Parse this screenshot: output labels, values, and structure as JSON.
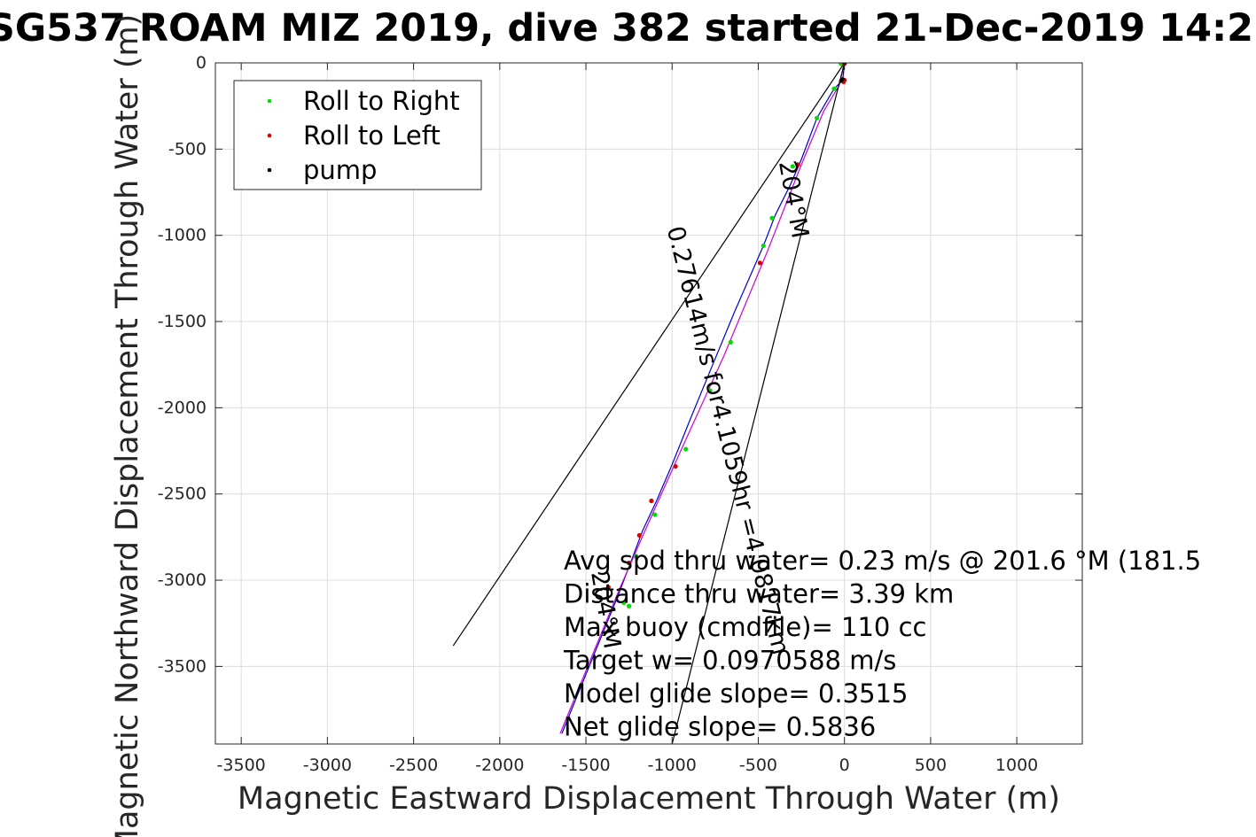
{
  "chart_data": {
    "type": "line",
    "title": "SG537 ROAM MIZ 2019, dive 382 started 21-Dec-2019 14:2",
    "xlabel": "Magnetic Eastward Displacement Through Water (m)",
    "ylabel": "Magnetic Northward Displacement Through Water (m)",
    "xlim": [
      -3650,
      1380
    ],
    "ylim": [
      -3950,
      0
    ],
    "xticks": [
      -3500,
      -3000,
      -2500,
      -2000,
      -1500,
      -1000,
      -500,
      0,
      500,
      1000
    ],
    "yticks": [
      0,
      -500,
      -1000,
      -1500,
      -2000,
      -2500,
      -3000,
      -3500
    ],
    "grid": true,
    "legend_position": "top-left",
    "legend": [
      {
        "label": "Roll to Right",
        "color": "#00dd00"
      },
      {
        "label": "Roll to Left",
        "color": "#dd0000"
      },
      {
        "label": "pump",
        "color": "#000000"
      }
    ],
    "series": [
      {
        "kind": "track-blue",
        "color": "#0000cc",
        "points": [
          [
            0,
            0
          ],
          [
            -10,
            -100
          ],
          [
            -60,
            -150
          ],
          [
            -90,
            -200
          ],
          [
            -160,
            -320
          ],
          [
            -250,
            -560
          ],
          [
            -320,
            -720
          ],
          [
            -400,
            -880
          ],
          [
            -470,
            -1060
          ],
          [
            -540,
            -1220
          ],
          [
            -640,
            -1450
          ],
          [
            -760,
            -1740
          ],
          [
            -900,
            -2080
          ],
          [
            -1000,
            -2330
          ],
          [
            -1090,
            -2540
          ],
          [
            -1170,
            -2710
          ],
          [
            -1230,
            -2870
          ],
          [
            -1280,
            -3000
          ],
          [
            -1310,
            -3080
          ],
          [
            -1640,
            -3890
          ]
        ]
      },
      {
        "kind": "track-magenta",
        "color": "#cc00cc",
        "points": [
          [
            0,
            0
          ],
          [
            -30,
            -130
          ],
          [
            -120,
            -280
          ],
          [
            -250,
            -590
          ],
          [
            -450,
            -1100
          ],
          [
            -700,
            -1700
          ],
          [
            -950,
            -2250
          ],
          [
            -1160,
            -2720
          ],
          [
            -1300,
            -3040
          ],
          [
            -1650,
            -3890
          ]
        ]
      },
      {
        "kind": "current-lines",
        "color": "#000000",
        "segments": [
          [
            [
              0,
              0
            ],
            [
              -2270,
              -3380
            ]
          ],
          [
            [
              0,
              0
            ],
            [
              -1000,
              -3950
            ]
          ]
        ]
      },
      {
        "name": "Roll to Right",
        "color": "#00dd00",
        "points": [
          [
            -20,
            -5
          ],
          [
            -60,
            -150
          ],
          [
            -160,
            -320
          ],
          [
            -300,
            -600
          ],
          [
            -420,
            -900
          ],
          [
            -470,
            -1060
          ],
          [
            -660,
            -1620
          ],
          [
            -780,
            -1900
          ],
          [
            -920,
            -2240
          ],
          [
            -1100,
            -2620
          ],
          [
            -1210,
            -2860
          ],
          [
            -1280,
            -3130
          ],
          [
            -1250,
            -3150
          ]
        ]
      },
      {
        "name": "Roll to Left",
        "color": "#dd0000",
        "points": [
          [
            0,
            -5
          ],
          [
            0,
            -100
          ],
          [
            -5,
            -110
          ],
          [
            -270,
            -590
          ],
          [
            -490,
            -1160
          ],
          [
            -980,
            -2340
          ],
          [
            -1120,
            -2540
          ],
          [
            -1190,
            -2740
          ],
          [
            -1250,
            -2900
          ],
          [
            -1370,
            -3040
          ]
        ]
      },
      {
        "name": "pump",
        "color": "#000000",
        "points": [
          [
            0,
            0
          ],
          [
            -10,
            -95
          ],
          [
            -20,
            -105
          ]
        ]
      }
    ],
    "segment_labels": [
      {
        "text": "0.27614m/s for4.1059hr =4.0817km",
        "at": [
          -720,
          -2200
        ],
        "angle_deg": 76
      },
      {
        "text": "204°M",
        "at": [
          -340,
          -800
        ],
        "angle_deg": 80
      },
      {
        "text": "204°M",
        "at": [
          -1430,
          -3180
        ],
        "angle_deg": 80
      }
    ],
    "annotations": [
      "Avg spd thru water=  0.23 m/s @ 201.6 °M (181.5",
      "Distance thru water=  3.39 km",
      "Max buoy (cmdfile)= 110 cc",
      "Target w= 0.0970588 m/s",
      "Model glide slope= 0.3515",
      "Net glide slope= 0.5836"
    ]
  }
}
